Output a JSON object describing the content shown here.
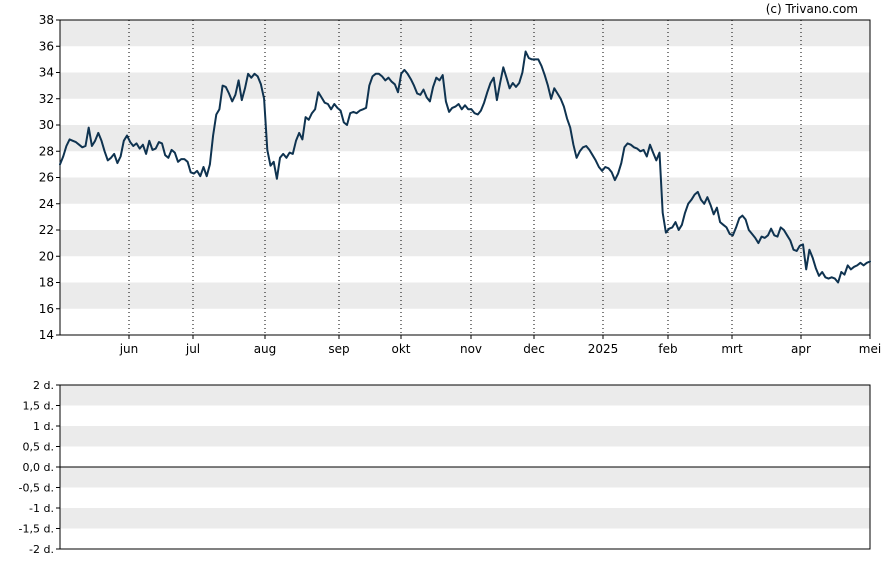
{
  "credit": "(c) Trivano.com",
  "chart_data": [
    {
      "type": "line",
      "title": "",
      "xlabel": "",
      "ylabel": "",
      "ylim": [
        14,
        38
      ],
      "yticks": [
        "14",
        "16",
        "18",
        "20",
        "22",
        "24",
        "26",
        "28",
        "30",
        "32",
        "34",
        "36",
        "38"
      ],
      "x_ticks": [
        "jun",
        "jul",
        "aug",
        "sep",
        "okt",
        "nov",
        "dec",
        "2025",
        "feb",
        "mrt",
        "apr",
        "mei"
      ],
      "grid": "dotted vertical lines at month ticks, alternating horizontal bands",
      "line_color": "#0f3350",
      "series": [
        {
          "values": [
            27.0,
            27.6,
            28.4,
            28.9,
            28.8,
            28.7,
            28.5,
            28.3,
            28.4,
            29.8,
            28.4,
            28.8,
            29.4,
            28.8,
            28.0,
            27.3,
            27.5,
            27.8,
            27.1,
            27.6,
            28.8,
            29.2,
            28.7,
            28.4,
            28.6,
            28.2,
            28.5,
            27.8,
            28.8,
            28.1,
            28.2,
            28.7,
            28.6,
            27.7,
            27.5,
            28.1,
            27.9,
            27.2,
            27.4,
            27.4,
            27.2,
            26.4,
            26.3,
            26.5,
            26.1,
            26.8,
            26.1,
            27.0,
            29.2,
            30.8,
            31.2,
            33.0,
            32.9,
            32.4,
            31.8,
            32.3,
            33.4,
            31.9,
            32.8,
            33.9,
            33.6,
            33.9,
            33.7,
            33.1,
            32.0,
            28.1,
            26.9,
            27.2,
            25.9,
            27.5,
            27.8,
            27.5,
            27.9,
            27.8,
            28.8,
            29.4,
            28.9,
            30.6,
            30.4,
            30.9,
            31.2,
            32.5,
            32.1,
            31.7,
            31.6,
            31.2,
            31.6,
            31.3,
            31.1,
            30.2,
            30.0,
            30.9,
            31.0,
            30.9,
            31.1,
            31.2,
            31.3,
            33.0,
            33.7,
            33.9,
            33.9,
            33.7,
            33.4,
            33.6,
            33.3,
            33.1,
            32.5,
            33.9,
            34.2,
            33.9,
            33.5,
            33.0,
            32.4,
            32.3,
            32.7,
            32.1,
            31.8,
            32.9,
            33.6,
            33.4,
            33.8,
            31.8,
            31.0,
            31.3,
            31.4,
            31.6,
            31.2,
            31.5,
            31.2,
            31.2,
            30.9,
            30.8,
            31.1,
            31.7,
            32.5,
            33.2,
            33.6,
            31.9,
            33.2,
            34.4,
            33.6,
            32.8,
            33.2,
            32.9,
            33.2,
            34.0,
            35.6,
            35.1,
            35.0,
            35.0,
            35.0,
            34.5,
            33.8,
            33.0,
            32.0,
            32.8,
            32.4,
            32.0,
            31.4,
            30.5,
            29.8,
            28.5,
            27.5,
            28.0,
            28.3,
            28.4,
            28.1,
            27.7,
            27.3,
            26.8,
            26.5,
            26.8,
            26.7,
            26.4,
            25.8,
            26.3,
            27.1,
            28.3,
            28.6,
            28.5,
            28.3,
            28.2,
            28.0,
            28.1,
            27.6,
            28.5,
            27.9,
            27.3,
            27.9,
            23.3,
            21.8,
            22.1,
            22.2,
            22.6,
            22.0,
            22.4,
            23.3,
            24.0,
            24.3,
            24.7,
            24.9,
            24.3,
            24.0,
            24.5,
            23.9,
            23.2,
            23.7,
            22.6,
            22.4,
            22.2,
            21.7,
            21.6,
            22.2,
            22.9,
            23.1,
            22.8,
            22.0,
            21.7,
            21.4,
            21.0,
            21.5,
            21.4,
            21.6,
            22.1,
            21.6,
            21.5,
            22.2,
            22.0,
            21.6,
            21.2,
            20.5,
            20.4,
            20.8,
            20.9,
            19.0,
            20.5,
            19.9,
            19.1,
            18.5,
            18.8,
            18.4,
            18.3,
            18.4,
            18.3,
            18.0,
            18.8,
            18.6,
            19.3,
            19.0,
            19.2,
            19.3,
            19.5,
            19.3,
            19.5,
            19.6
          ]
        }
      ]
    },
    {
      "type": "line",
      "title": "",
      "xlabel": "",
      "ylabel": "",
      "ylim": [
        -2,
        2
      ],
      "yticks": [
        "-2 d.",
        "-1,5 d.",
        "-1 d.",
        "-0,5 d.",
        "0,0 d.",
        "0,5 d.",
        "1 d.",
        "1,5 d.",
        "2 d."
      ],
      "grid": "alternating horizontal bands, solid zero line",
      "series": []
    }
  ]
}
